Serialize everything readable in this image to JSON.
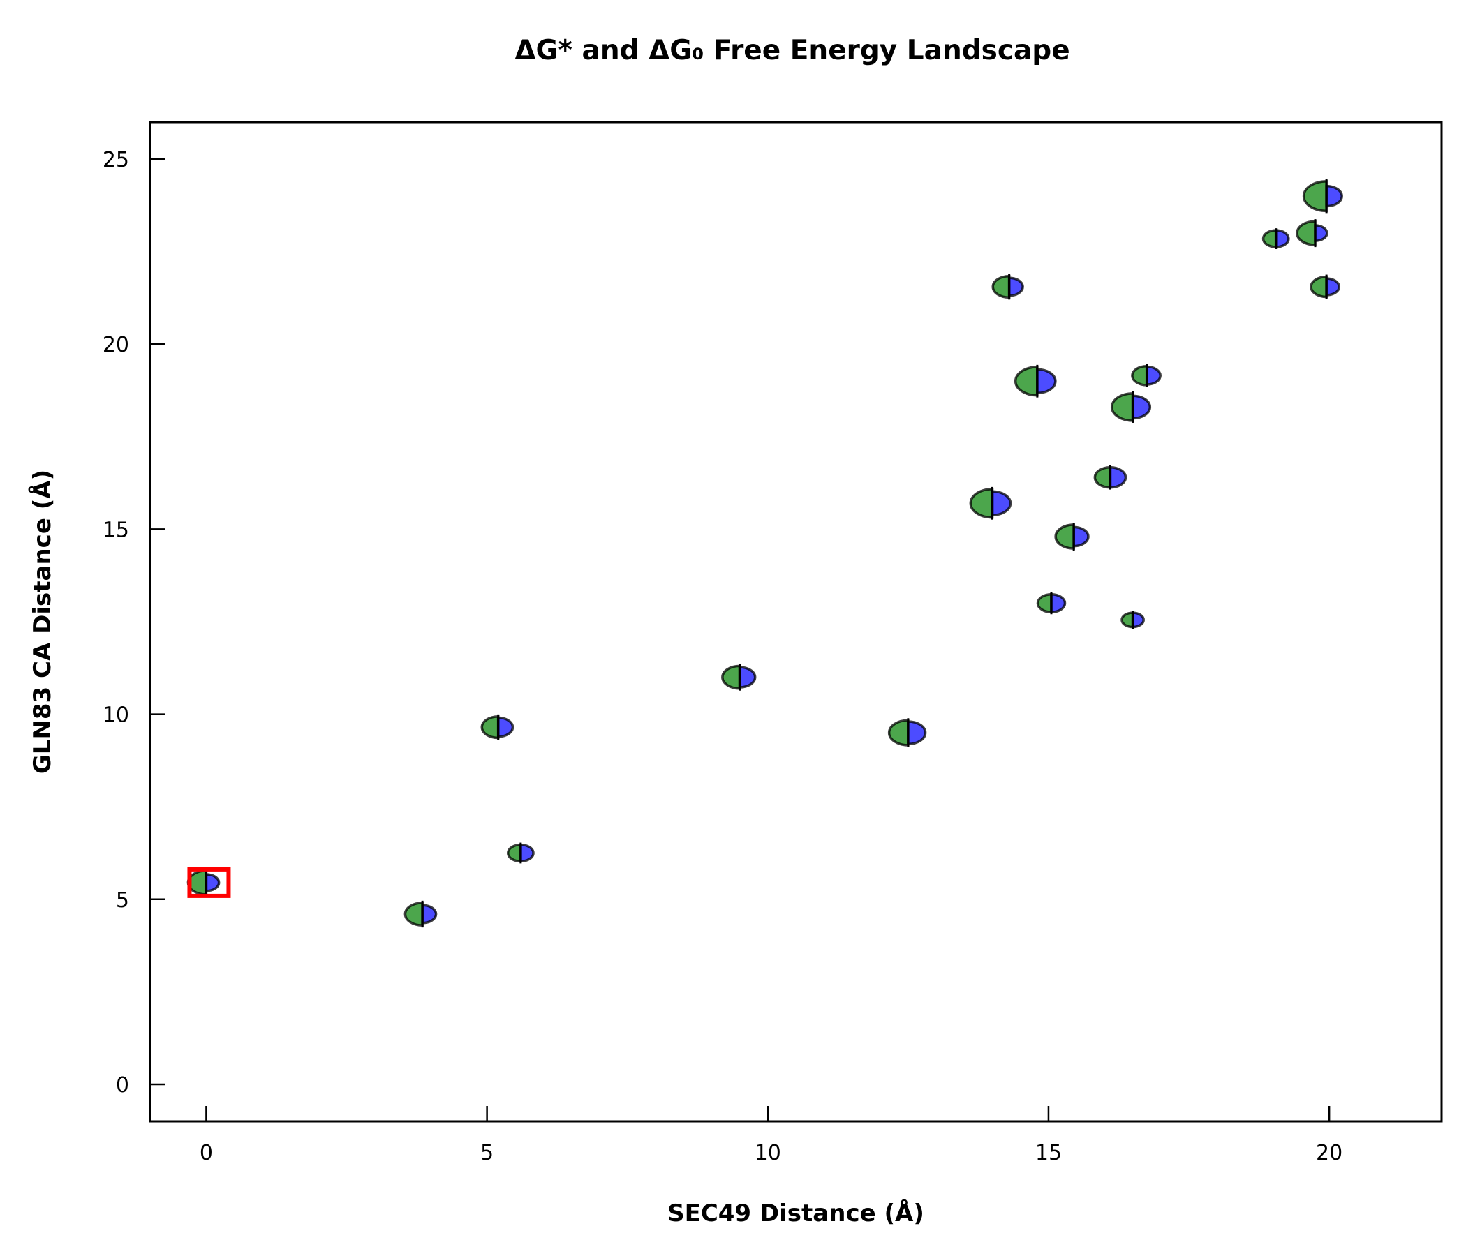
{
  "chart_data": {
    "type": "scatter",
    "title": "ΔG* and ΔG₀ Free Energy Landscape",
    "xlabel": "SEC49 Distance (Å)",
    "ylabel": "GLN83 CA Distance (Å)",
    "xlim": [
      -1,
      22
    ],
    "ylim": [
      -1,
      26
    ],
    "xticks": [
      0,
      5,
      10,
      15,
      20
    ],
    "yticks": [
      0,
      5,
      10,
      15,
      20,
      25
    ],
    "grid": false,
    "colors": {
      "left_half": "#008000",
      "right_half": "#0000ff",
      "highlight": "#ff0000"
    },
    "points": [
      {
        "x": 0.0,
        "y": 5.45,
        "left": 1.0,
        "right": 0.7
      },
      {
        "x": 3.85,
        "y": 4.6,
        "left": 0.95,
        "right": 0.75
      },
      {
        "x": 5.2,
        "y": 9.65,
        "left": 0.9,
        "right": 0.8
      },
      {
        "x": 5.6,
        "y": 6.25,
        "left": 0.7,
        "right": 0.7
      },
      {
        "x": 9.5,
        "y": 11.0,
        "left": 0.95,
        "right": 0.85
      },
      {
        "x": 12.5,
        "y": 9.5,
        "left": 1.05,
        "right": 0.95
      },
      {
        "x": 14.0,
        "y": 15.7,
        "left": 1.2,
        "right": 1.0
      },
      {
        "x": 14.3,
        "y": 21.55,
        "left": 0.9,
        "right": 0.75
      },
      {
        "x": 14.8,
        "y": 19.0,
        "left": 1.2,
        "right": 1.0
      },
      {
        "x": 15.05,
        "y": 13.0,
        "left": 0.75,
        "right": 0.75
      },
      {
        "x": 15.45,
        "y": 14.8,
        "left": 1.0,
        "right": 0.8
      },
      {
        "x": 16.1,
        "y": 16.4,
        "left": 0.85,
        "right": 0.85
      },
      {
        "x": 16.5,
        "y": 12.55,
        "left": 0.6,
        "right": 0.6
      },
      {
        "x": 16.5,
        "y": 18.3,
        "left": 1.15,
        "right": 0.95
      },
      {
        "x": 16.75,
        "y": 19.15,
        "left": 0.8,
        "right": 0.75
      },
      {
        "x": 19.05,
        "y": 22.85,
        "left": 0.7,
        "right": 0.7
      },
      {
        "x": 19.75,
        "y": 23.0,
        "left": 1.0,
        "right": 0.65
      },
      {
        "x": 19.95,
        "y": 21.55,
        "left": 0.85,
        "right": 0.7
      },
      {
        "x": 19.95,
        "y": 24.0,
        "left": 1.25,
        "right": 0.85
      }
    ],
    "highlight": {
      "x": 0.05,
      "y": 5.45
    }
  }
}
